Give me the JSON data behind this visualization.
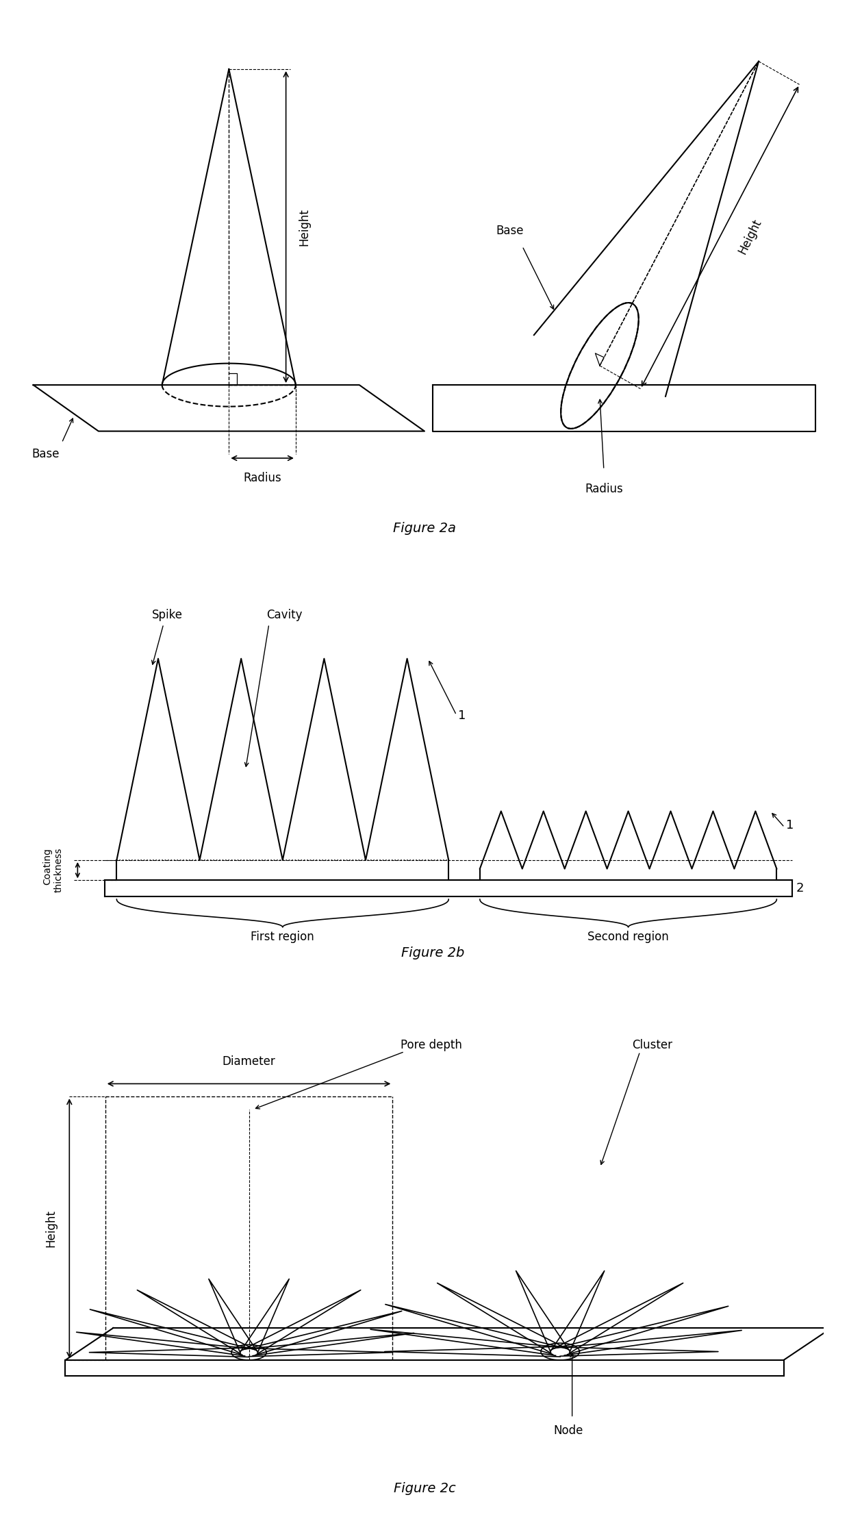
{
  "fig2a_title": "Figure 2a",
  "fig2b_title": "Figure 2b",
  "fig2c_title": "Figure 2c",
  "line_color": "#000000",
  "bg_color": "#ffffff",
  "fs_label": 12,
  "fs_title": 14,
  "fs_small": 10
}
